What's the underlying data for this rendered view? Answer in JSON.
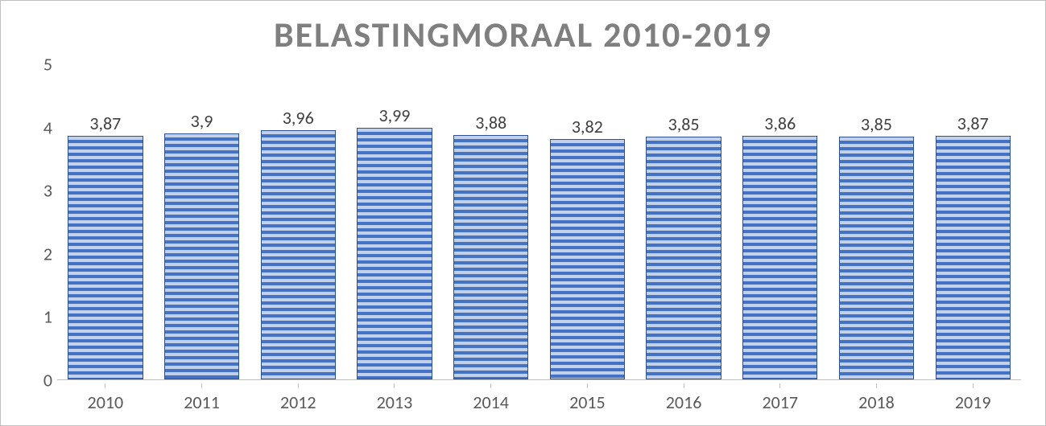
{
  "chart": {
    "type": "bar",
    "title": "BELASTINGMORAAL 2010-2019",
    "title_color": "#7f7f7f",
    "title_fontsize": 44,
    "background_color": "#ffffff",
    "border_color": "#bfbfbf",
    "axis_label_color": "#595959",
    "axis_label_fontsize": 22,
    "data_label_color": "#404040",
    "data_label_fontsize": 22,
    "bar_fill_color": "#4472c4",
    "bar_stripe_color": "#c2d0ea",
    "bar_border_color": "#2f528f",
    "bar_width_ratio": 0.78,
    "ylim": [
      0,
      5
    ],
    "ytick_step": 1,
    "yticks": [
      "0",
      "1",
      "2",
      "3",
      "4",
      "5"
    ],
    "categories": [
      "2010",
      "2011",
      "2012",
      "2013",
      "2014",
      "2015",
      "2016",
      "2017",
      "2018",
      "2019"
    ],
    "values": [
      3.87,
      3.9,
      3.96,
      3.99,
      3.88,
      3.82,
      3.85,
      3.86,
      3.85,
      3.87
    ],
    "value_labels": [
      "3,87",
      "3,9",
      "3,96",
      "3,99",
      "3,88",
      "3,82",
      "3,85",
      "3,86",
      "3,85",
      "3,87"
    ]
  }
}
